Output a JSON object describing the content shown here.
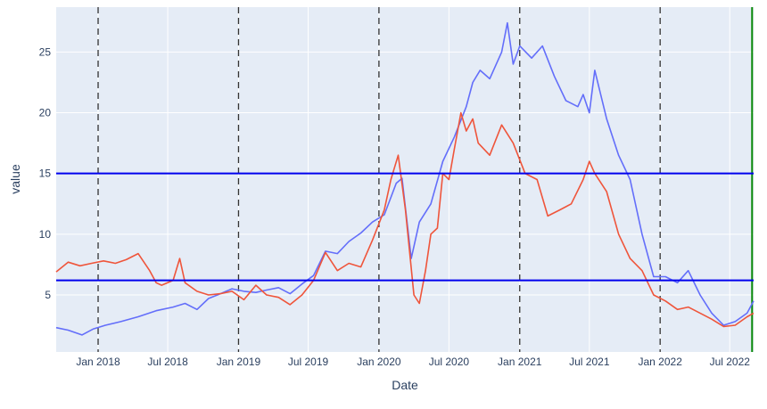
{
  "chart_data": {
    "type": "line",
    "xlabel": "Date",
    "ylabel": "value",
    "xlim": [
      "2017-09-14",
      "2022-09-01"
    ],
    "ylim": [
      0.3,
      28.7
    ],
    "x_ticks": [
      {
        "date": "2018-01-01",
        "label": "Jan 2018"
      },
      {
        "date": "2018-07-01",
        "label": "Jul 2018"
      },
      {
        "date": "2019-01-01",
        "label": "Jan 2019"
      },
      {
        "date": "2019-07-01",
        "label": "Jul 2019"
      },
      {
        "date": "2020-01-01",
        "label": "Jan 2020"
      },
      {
        "date": "2020-07-01",
        "label": "Jul 2020"
      },
      {
        "date": "2021-01-01",
        "label": "Jan 2021"
      },
      {
        "date": "2021-07-01",
        "label": "Jul 2021"
      },
      {
        "date": "2022-01-01",
        "label": "Jan 2022"
      },
      {
        "date": "2022-07-01",
        "label": "Jul 2022"
      }
    ],
    "y_ticks": [
      5,
      10,
      15,
      20,
      25
    ],
    "grid": true,
    "legend": "none",
    "series": [
      {
        "color": "#636efa",
        "points": [
          [
            "2017-09-14",
            2.3
          ],
          [
            "2017-10-15",
            2.1
          ],
          [
            "2017-11-20",
            1.7
          ],
          [
            "2017-12-20",
            2.2
          ],
          [
            "2018-01-20",
            2.5
          ],
          [
            "2018-03-01",
            2.8
          ],
          [
            "2018-04-15",
            3.2
          ],
          [
            "2018-06-01",
            3.7
          ],
          [
            "2018-07-15",
            4.0
          ],
          [
            "2018-08-15",
            4.3
          ],
          [
            "2018-09-15",
            3.8
          ],
          [
            "2018-10-15",
            4.7
          ],
          [
            "2018-11-15",
            5.1
          ],
          [
            "2018-12-15",
            5.5
          ],
          [
            "2019-01-15",
            5.3
          ],
          [
            "2019-02-15",
            5.2
          ],
          [
            "2019-03-15",
            5.4
          ],
          [
            "2019-04-15",
            5.6
          ],
          [
            "2019-05-15",
            5.1
          ],
          [
            "2019-06-15",
            5.9
          ],
          [
            "2019-07-15",
            6.6
          ],
          [
            "2019-08-15",
            8.6
          ],
          [
            "2019-09-15",
            8.4
          ],
          [
            "2019-10-15",
            9.4
          ],
          [
            "2019-11-15",
            10.1
          ],
          [
            "2019-12-15",
            11.0
          ],
          [
            "2020-01-15",
            11.6
          ],
          [
            "2020-02-15",
            14.2
          ],
          [
            "2020-03-01",
            14.6
          ],
          [
            "2020-03-25",
            8.0
          ],
          [
            "2020-04-15",
            11.0
          ],
          [
            "2020-05-15",
            12.5
          ],
          [
            "2020-06-15",
            16.0
          ],
          [
            "2020-07-15",
            18.0
          ],
          [
            "2020-08-15",
            20.5
          ],
          [
            "2020-09-01",
            22.5
          ],
          [
            "2020-09-20",
            23.5
          ],
          [
            "2020-10-15",
            22.8
          ],
          [
            "2020-11-15",
            25.0
          ],
          [
            "2020-11-30",
            27.4
          ],
          [
            "2020-12-15",
            24.0
          ],
          [
            "2021-01-01",
            25.5
          ],
          [
            "2021-02-01",
            24.5
          ],
          [
            "2021-03-01",
            25.5
          ],
          [
            "2021-04-01",
            23.0
          ],
          [
            "2021-05-01",
            21.0
          ],
          [
            "2021-06-01",
            20.5
          ],
          [
            "2021-06-15",
            21.5
          ],
          [
            "2021-07-01",
            20.0
          ],
          [
            "2021-07-15",
            23.5
          ],
          [
            "2021-08-15",
            19.5
          ],
          [
            "2021-09-15",
            16.5
          ],
          [
            "2021-10-15",
            14.5
          ],
          [
            "2021-11-15",
            10.0
          ],
          [
            "2021-12-15",
            6.5
          ],
          [
            "2022-01-15",
            6.5
          ],
          [
            "2022-02-15",
            6.0
          ],
          [
            "2022-03-15",
            7.0
          ],
          [
            "2022-04-15",
            5.0
          ],
          [
            "2022-05-15",
            3.5
          ],
          [
            "2022-06-15",
            2.5
          ],
          [
            "2022-07-15",
            2.8
          ],
          [
            "2022-08-15",
            3.5
          ],
          [
            "2022-09-01",
            4.5
          ]
        ]
      },
      {
        "color": "#ef553b",
        "points": [
          [
            "2017-09-14",
            6.9
          ],
          [
            "2017-10-15",
            7.7
          ],
          [
            "2017-11-15",
            7.4
          ],
          [
            "2017-12-15",
            7.6
          ],
          [
            "2018-01-15",
            7.8
          ],
          [
            "2018-02-15",
            7.6
          ],
          [
            "2018-03-15",
            7.9
          ],
          [
            "2018-04-15",
            8.4
          ],
          [
            "2018-05-15",
            7.0
          ],
          [
            "2018-06-01",
            6.0
          ],
          [
            "2018-06-15",
            5.8
          ],
          [
            "2018-07-15",
            6.2
          ],
          [
            "2018-08-01",
            8.0
          ],
          [
            "2018-08-15",
            6.0
          ],
          [
            "2018-09-15",
            5.3
          ],
          [
            "2018-10-15",
            5.0
          ],
          [
            "2018-11-15",
            5.1
          ],
          [
            "2018-12-15",
            5.3
          ],
          [
            "2019-01-15",
            4.6
          ],
          [
            "2019-02-15",
            5.8
          ],
          [
            "2019-03-15",
            5.0
          ],
          [
            "2019-04-15",
            4.8
          ],
          [
            "2019-05-15",
            4.2
          ],
          [
            "2019-06-15",
            5.0
          ],
          [
            "2019-07-15",
            6.2
          ],
          [
            "2019-08-15",
            8.5
          ],
          [
            "2019-09-15",
            7.0
          ],
          [
            "2019-10-15",
            7.6
          ],
          [
            "2019-11-15",
            7.3
          ],
          [
            "2019-12-15",
            9.5
          ],
          [
            "2020-01-15",
            12.0
          ],
          [
            "2020-02-01",
            14.5
          ],
          [
            "2020-02-20",
            16.5
          ],
          [
            "2020-03-10",
            12.0
          ],
          [
            "2020-04-01",
            5.0
          ],
          [
            "2020-04-15",
            4.3
          ],
          [
            "2020-05-01",
            7.0
          ],
          [
            "2020-05-15",
            10.0
          ],
          [
            "2020-06-01",
            10.5
          ],
          [
            "2020-06-15",
            15.0
          ],
          [
            "2020-07-01",
            14.5
          ],
          [
            "2020-07-15",
            17.0
          ],
          [
            "2020-08-01",
            20.0
          ],
          [
            "2020-08-15",
            18.5
          ],
          [
            "2020-09-01",
            19.5
          ],
          [
            "2020-09-15",
            17.5
          ],
          [
            "2020-10-15",
            16.5
          ],
          [
            "2020-11-15",
            19.0
          ],
          [
            "2020-12-15",
            17.5
          ],
          [
            "2021-01-15",
            15.0
          ],
          [
            "2021-02-15",
            14.5
          ],
          [
            "2021-03-15",
            11.5
          ],
          [
            "2021-04-15",
            12.0
          ],
          [
            "2021-05-15",
            12.5
          ],
          [
            "2021-06-15",
            14.5
          ],
          [
            "2021-07-01",
            16.0
          ],
          [
            "2021-07-15",
            15.0
          ],
          [
            "2021-08-15",
            13.5
          ],
          [
            "2021-09-15",
            10.0
          ],
          [
            "2021-10-15",
            8.0
          ],
          [
            "2021-11-15",
            7.0
          ],
          [
            "2021-12-15",
            5.0
          ],
          [
            "2022-01-15",
            4.5
          ],
          [
            "2022-02-15",
            3.8
          ],
          [
            "2022-03-15",
            4.0
          ],
          [
            "2022-04-15",
            3.5
          ],
          [
            "2022-05-15",
            3.0
          ],
          [
            "2022-06-15",
            2.4
          ],
          [
            "2022-07-15",
            2.5
          ],
          [
            "2022-08-15",
            3.2
          ],
          [
            "2022-09-01",
            3.5
          ]
        ]
      }
    ],
    "hlines": [
      {
        "y": 15.0,
        "color": "#0000ee"
      },
      {
        "y": 6.2,
        "color": "#0000ee"
      }
    ],
    "vlines_dashed": [
      "2018-01-01",
      "2019-01-01",
      "2020-01-01",
      "2021-01-01",
      "2022-01-01"
    ],
    "vlines_solid": [
      {
        "date": "2022-08-28",
        "color": "#0a8a0a"
      }
    ]
  }
}
